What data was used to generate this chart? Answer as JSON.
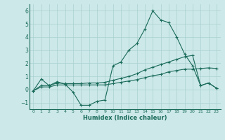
{
  "xlabel": "Humidex (Indice chaleur)",
  "x": [
    0,
    1,
    2,
    3,
    4,
    5,
    6,
    7,
    8,
    9,
    10,
    11,
    12,
    13,
    14,
    15,
    16,
    17,
    18,
    19,
    20,
    21,
    22,
    23
  ],
  "line1": [
    -0.1,
    0.8,
    0.3,
    0.6,
    0.4,
    -0.2,
    -1.2,
    -1.2,
    -0.9,
    -0.8,
    1.8,
    2.1,
    3.0,
    3.5,
    4.6,
    6.0,
    5.3,
    5.1,
    4.0,
    2.7,
    1.8,
    0.3,
    0.5,
    0.1
  ],
  "line2": [
    -0.1,
    0.3,
    0.3,
    0.5,
    0.45,
    0.45,
    0.45,
    0.5,
    0.5,
    0.55,
    0.7,
    0.85,
    1.0,
    1.2,
    1.5,
    1.7,
    1.9,
    2.1,
    2.3,
    2.5,
    2.6,
    0.3,
    0.5,
    0.1
  ],
  "line3": [
    -0.1,
    0.2,
    0.2,
    0.35,
    0.35,
    0.35,
    0.35,
    0.35,
    0.35,
    0.35,
    0.45,
    0.55,
    0.65,
    0.75,
    0.9,
    1.05,
    1.15,
    1.35,
    1.45,
    1.55,
    1.55,
    1.6,
    1.65,
    1.6
  ],
  "color": "#1a6b5a",
  "bg_color": "#cce8e8",
  "grid_color": "#aad0d0",
  "ylim": [
    -1.5,
    6.5
  ],
  "xlim": [
    -0.5,
    23.5
  ],
  "yticks": [
    -1,
    0,
    1,
    2,
    3,
    4,
    5,
    6
  ],
  "xticks": [
    0,
    1,
    2,
    3,
    4,
    5,
    6,
    7,
    8,
    9,
    10,
    11,
    12,
    13,
    14,
    15,
    16,
    17,
    18,
    19,
    20,
    21,
    22,
    23
  ]
}
